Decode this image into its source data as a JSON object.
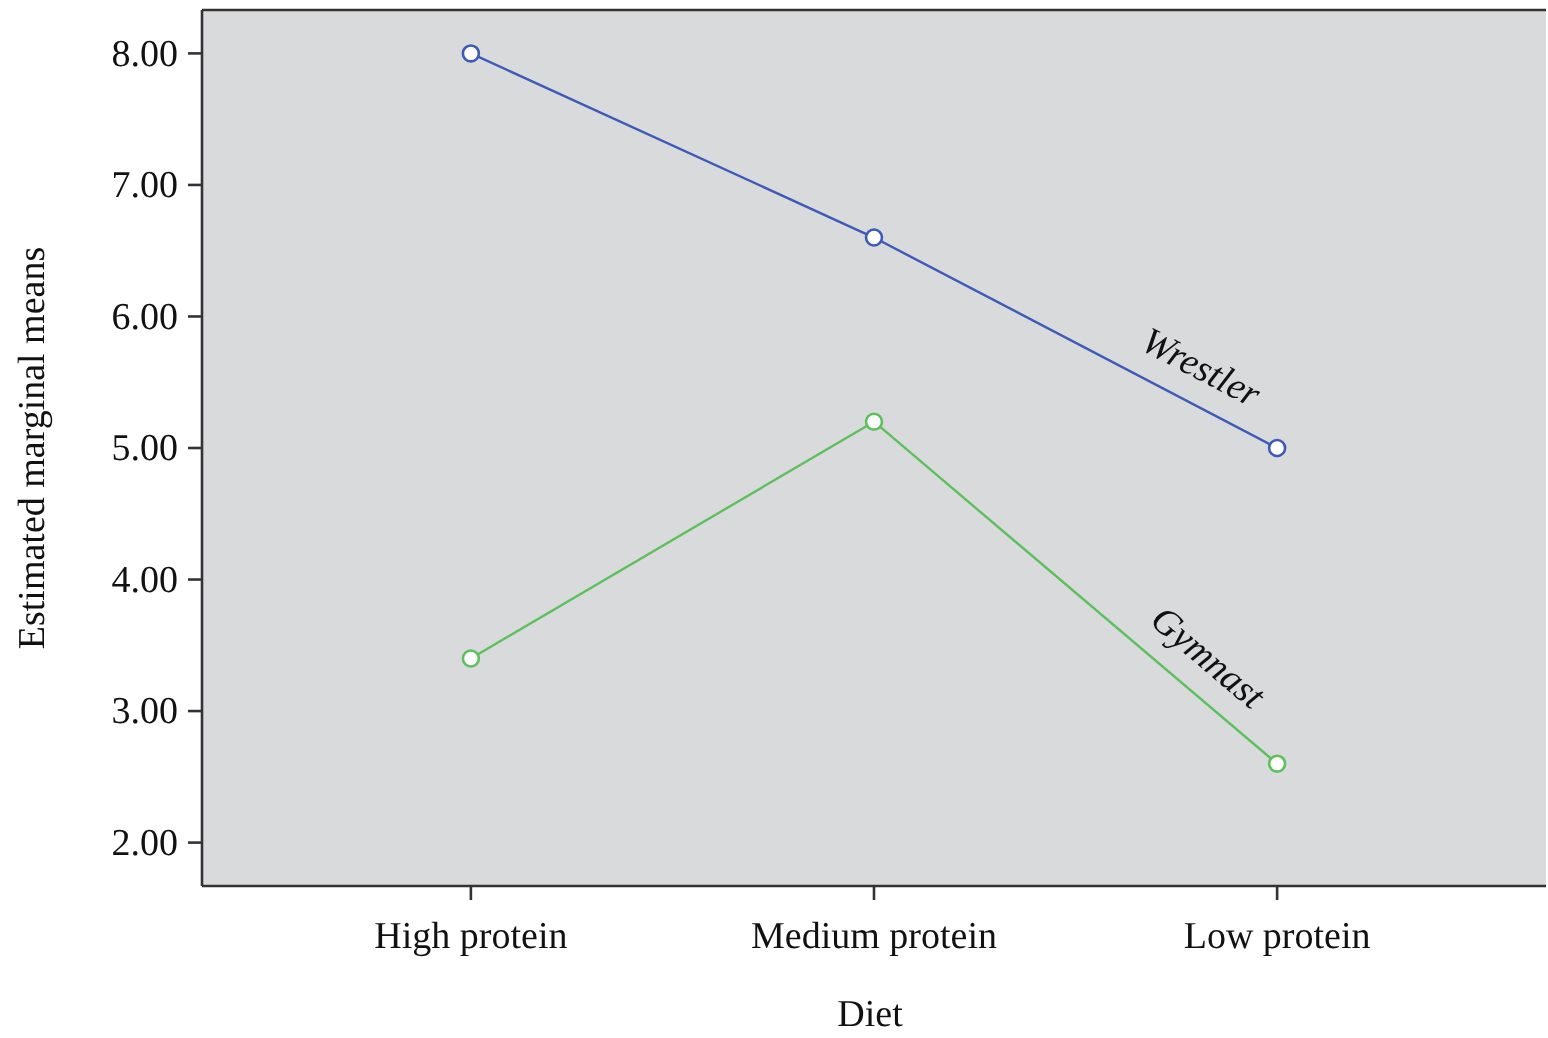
{
  "chart_data": {
    "type": "line",
    "xlabel": "Diet",
    "ylabel": "Estimated marginal means",
    "categories": [
      "High protein",
      "Medium protein",
      "Low protein"
    ],
    "series": [
      {
        "name": "Wrestler",
        "color": "#3d5ab8",
        "values": [
          8.0,
          6.6,
          5.0
        ]
      },
      {
        "name": "Gymnast",
        "color": "#5dc05d",
        "values": [
          3.4,
          5.2,
          2.6
        ]
      }
    ],
    "ylim": [
      1.67,
      8.33
    ],
    "yticks": [
      {
        "value": 2,
        "label": "2.00"
      },
      {
        "value": 3,
        "label": "3.00"
      },
      {
        "value": 4,
        "label": "4.00"
      },
      {
        "value": 5,
        "label": "5.00"
      },
      {
        "value": 6,
        "label": "6.00"
      },
      {
        "value": 7,
        "label": "7.00"
      },
      {
        "value": 8,
        "label": "8.00"
      }
    ],
    "grid": false,
    "marker": "circle",
    "line_style": "solid"
  }
}
